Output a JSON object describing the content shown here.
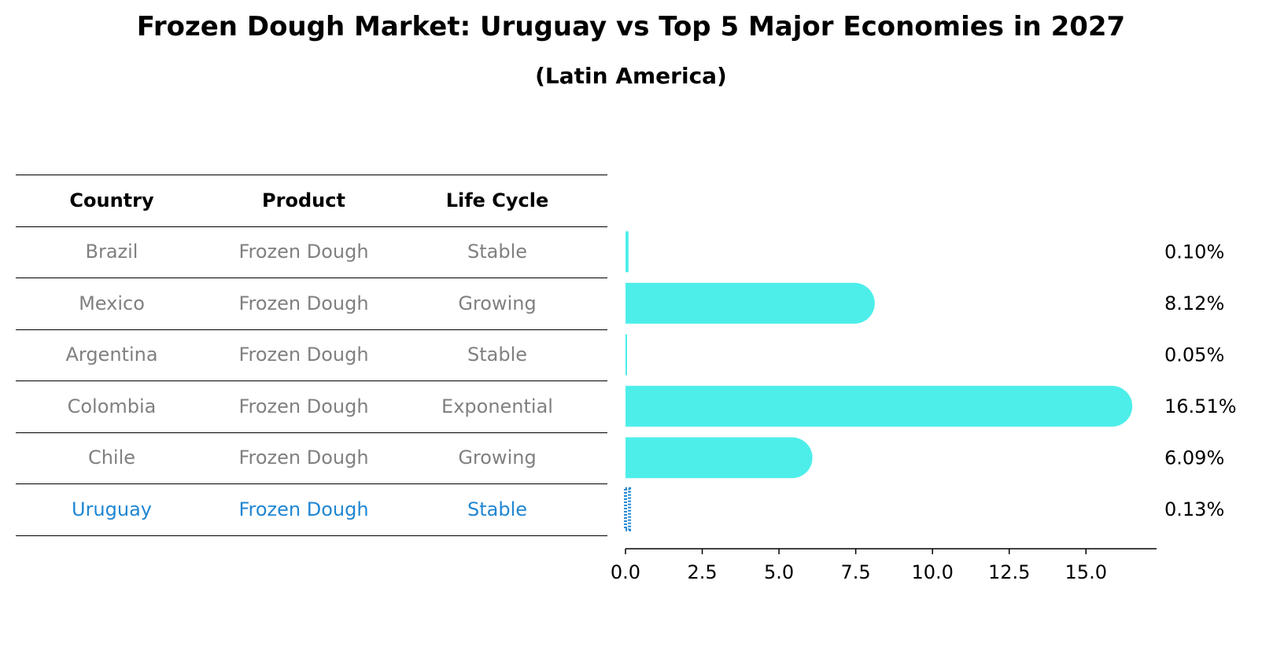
{
  "title": "Frozen Dough Market: Uruguay vs Top 5 Major Economies in 2027",
  "subtitle": "(Latin America)",
  "table": {
    "headers": [
      "Country",
      "Product",
      "Life Cycle"
    ],
    "rows": [
      {
        "country": "Brazil",
        "product": "Frozen Dough",
        "life_cycle": "Stable"
      },
      {
        "country": "Mexico",
        "product": "Frozen Dough",
        "life_cycle": "Growing"
      },
      {
        "country": "Argentina",
        "product": "Frozen Dough",
        "life_cycle": "Stable"
      },
      {
        "country": "Colombia",
        "product": "Frozen Dough",
        "life_cycle": "Exponential"
      },
      {
        "country": "Chile",
        "product": "Frozen Dough",
        "life_cycle": "Growing"
      },
      {
        "country": "Uruguay",
        "product": "Frozen Dough",
        "life_cycle": "Stable"
      }
    ],
    "highlight_row": 5
  },
  "chart_data": {
    "type": "bar",
    "orientation": "horizontal",
    "categories": [
      "Brazil",
      "Mexico",
      "Argentina",
      "Colombia",
      "Chile",
      "Uruguay"
    ],
    "values": [
      0.1,
      8.12,
      0.05,
      16.51,
      6.09,
      0.13
    ],
    "value_labels": [
      "0.10%",
      "8.12%",
      "0.05%",
      "16.51%",
      "6.09%",
      "0.13%"
    ],
    "xlim": [
      0,
      17.3
    ],
    "xticks": [
      0.0,
      2.5,
      5.0,
      7.5,
      10.0,
      12.5,
      15.0
    ],
    "xtick_labels": [
      "0.0",
      "2.5",
      "5.0",
      "7.5",
      "10.0",
      "12.5",
      "15.0"
    ],
    "bar_color": "#4deeea",
    "highlight_color": "#1f86d2",
    "highlight_index": 5,
    "grid": false
  }
}
